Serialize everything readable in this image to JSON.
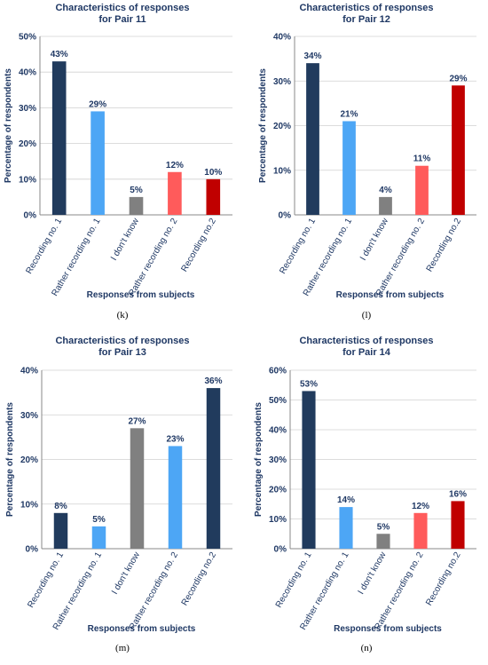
{
  "chart_data": [
    {
      "type": "bar",
      "title": [
        "Characteristics of responses",
        "for Pair 11"
      ],
      "ylabel": "Percentage of respondents",
      "xlabel": "Responses from subjects",
      "caption": "(k)",
      "categories": [
        "Recording no. 1",
        "Rather recording no. 1",
        "I don't know",
        "Rather recording no. 2",
        "Recording no.2"
      ],
      "values": [
        43,
        29,
        5,
        12,
        10
      ],
      "value_labels": [
        "43%",
        "29%",
        "5%",
        "12%",
        "10%"
      ],
      "colors": [
        "#213b5d",
        "#4da6f5",
        "#808080",
        "#ff5b5b",
        "#c00000"
      ],
      "ylim": [
        0,
        50
      ],
      "yticks": [
        0,
        10,
        20,
        30,
        40,
        50
      ],
      "ytick_labels": [
        "0%",
        "10%",
        "20%",
        "30%",
        "40%",
        "50%"
      ],
      "grid": true
    },
    {
      "type": "bar",
      "title": [
        "Characteristics of responses",
        "for Pair 12"
      ],
      "ylabel": "Percentage of respondents",
      "xlabel": "Responses from subjects",
      "caption": "(l)",
      "categories": [
        "Recording no. 1",
        "Rather recording no. 1",
        "I don't know",
        "Rather recording no. 2",
        "Recording no.2"
      ],
      "values": [
        34,
        21,
        4,
        11,
        29
      ],
      "value_labels": [
        "34%",
        "21%",
        "4%",
        "11%",
        "29%"
      ],
      "colors": [
        "#213b5d",
        "#4da6f5",
        "#808080",
        "#ff5b5b",
        "#c00000"
      ],
      "ylim": [
        0,
        40
      ],
      "yticks": [
        0,
        10,
        20,
        30,
        40
      ],
      "ytick_labels": [
        "0%",
        "10%",
        "20%",
        "30%",
        "40%"
      ],
      "grid": true
    },
    {
      "type": "bar",
      "title": [
        "Characteristics of responses",
        "for Pair 13"
      ],
      "ylabel": "Percentage of respondents",
      "xlabel": "Responses from subjects",
      "caption": "(m)",
      "categories": [
        "Recording no. 1",
        "Rather recording no. 1",
        "I don't know",
        "Rather recording no. 2",
        "Recording no.2"
      ],
      "values": [
        8,
        5,
        27,
        23,
        36
      ],
      "value_labels": [
        "8%",
        "5%",
        "27%",
        "23%",
        "36%"
      ],
      "colors": [
        "#213b5d",
        "#4da6f5",
        "#808080",
        "#4da6f5",
        "#213b5d"
      ],
      "ylim": [
        0,
        40
      ],
      "yticks": [
        0,
        10,
        20,
        30,
        40
      ],
      "ytick_labels": [
        "0%",
        "10%",
        "20%",
        "30%",
        "40%"
      ],
      "grid": true
    },
    {
      "type": "bar",
      "title": [
        "Characteristics of responses",
        "for Pair 14"
      ],
      "ylabel": "Percentage of respondents",
      "xlabel": "Responses from subjects",
      "caption": "(n)",
      "categories": [
        "Recording no. 1",
        "Rather recording no. 1",
        "I don't know",
        "Rather recording no. 2",
        "Recording no.2"
      ],
      "values": [
        53,
        14,
        5,
        12,
        16
      ],
      "value_labels": [
        "53%",
        "14%",
        "5%",
        "12%",
        "16%"
      ],
      "colors": [
        "#213b5d",
        "#4da6f5",
        "#808080",
        "#ff5b5b",
        "#c00000"
      ],
      "ylim": [
        0,
        60
      ],
      "yticks": [
        0,
        10,
        20,
        30,
        40,
        50,
        60
      ],
      "ytick_labels": [
        "0%",
        "10%",
        "20%",
        "30%",
        "40%",
        "50%",
        "60%"
      ],
      "grid": true
    }
  ]
}
